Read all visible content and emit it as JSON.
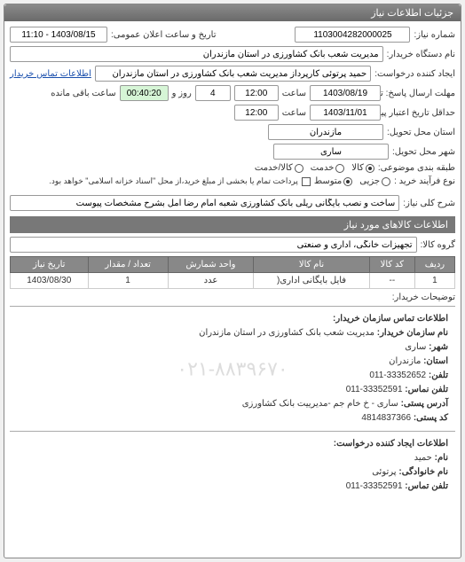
{
  "panel_title": "جزئیات اطلاعات نیاز",
  "fields": {
    "need_number_label": "شماره نیاز:",
    "need_number": "1103004282000025",
    "announce_label": "تاریخ و ساعت اعلان عمومی:",
    "announce_value": "1403/08/15 - 11:10",
    "buyer_org_label": "نام دستگاه خریدار:",
    "buyer_org": "مدیریت شعب بانک کشاورزی در استان مازندران",
    "requester_label": "ایجاد کننده درخواست:",
    "requester": "حمید پرتوئی کارپرداز مدیریت شعب بانک کشاورزی در استان مازندران",
    "contact_link": "اطلاعات تماس خریدار",
    "reply_deadline_label": "مهلت ارسال پاسخ: تا تاریخ:",
    "reply_deadline_date": "1403/08/19",
    "time_label": "ساعت",
    "reply_deadline_time": "12:00",
    "days_label": "روز و",
    "days_value": "4",
    "remain_label": "ساعت باقی مانده",
    "remain_time": "00:40:20",
    "validity_label": "حداقل تاریخ اعتبار پیشنهاد: تا تاریخ:",
    "validity_date": "1403/11/01",
    "validity_time": "12:00",
    "province_label": "استان محل تحویل:",
    "province": "مازندران",
    "city_label": "شهر محل تحویل:",
    "city": "ساری",
    "category_label": "طبقه بندی موضوعی:",
    "cat_options": [
      "کالا",
      "خدمت",
      "کالا/خدمت"
    ],
    "cat_selected": 0,
    "process_label": "نوع فرآیند خرید :",
    "process_options": [
      "جزیی",
      "متوسط"
    ],
    "process_selected": 1,
    "process_note": "پرداخت تمام یا بخشی از مبلغ خرید،از محل \"اسناد خزانه اسلامی\" خواهد بود.",
    "desc_label": "شرح کلی نیاز:",
    "desc_value": "ساخت و نصب بایگانی ریلی بانک کشاورزی شعبه امام رضا آمل بشرح مشخصات پیوست"
  },
  "goods_section_title": "اطلاعات کالاهای مورد نیاز",
  "goods_group_label": "گروه کالا:",
  "goods_group": "تجهیزات خانگی، اداری و صنعتی",
  "table": {
    "headers": [
      "ردیف",
      "کد کالا",
      "نام کالا",
      "واحد شمارش",
      "تعداد / مقدار",
      "تاریخ نیاز"
    ],
    "rows": [
      [
        "1",
        "--",
        "فایل بایگانی اداری(",
        "عدد",
        "1",
        "1403/08/30"
      ]
    ]
  },
  "buyer_notes_label": "توضیحات خریدار:",
  "contact1": {
    "title": "اطلاعات تماس سازمان خریدار:",
    "lines": [
      [
        "نام سازمان خریدار:",
        "مدیریت شعب بانک کشاورزی در استان مازندران"
      ],
      [
        "شهر:",
        "ساری"
      ],
      [
        "استان:",
        "مازندران"
      ],
      [
        "تلفن:",
        "33352652-011"
      ],
      [
        "تلفن نماس:",
        "33352591-011"
      ],
      [
        "آدرس پستی:",
        "ساری - خ خام جم -مدیرییت بانک کشاورزی"
      ],
      [
        "کد پستی:",
        "4814837366"
      ]
    ],
    "watermark": "۰۲۱-۸۸۳۹۶۷۰"
  },
  "contact2": {
    "title": "اطلاعات ایجاد کننده درخواست:",
    "lines": [
      [
        "نام:",
        "حمید"
      ],
      [
        "نام خانوادگی:",
        "پرتوئی"
      ],
      [
        "تلفن تماس:",
        "33352591-011"
      ]
    ]
  }
}
